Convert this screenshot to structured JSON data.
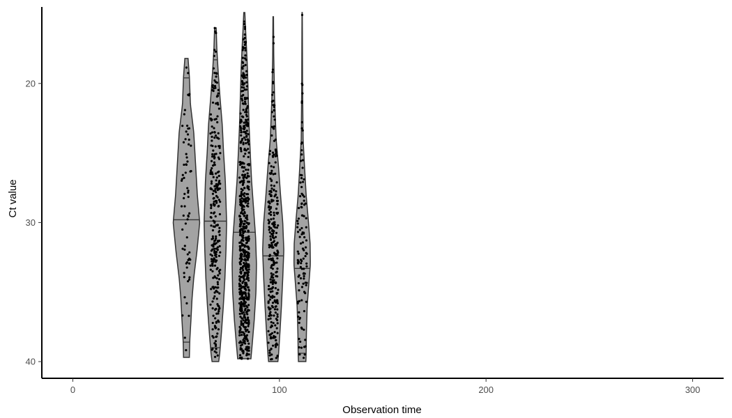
{
  "chart_data": {
    "type": "violin",
    "title": "",
    "xlabel": "Observation time",
    "ylabel": "Ct value",
    "xlim": [
      -15,
      315
    ],
    "ylim": [
      14.5,
      41.2
    ],
    "y_reversed": true,
    "x_ticks": [
      0,
      100,
      200,
      300
    ],
    "x_tick_labels": [
      "0",
      "100",
      "200",
      "300"
    ],
    "y_ticks": [
      20,
      30,
      40
    ],
    "y_tick_labels": [
      "20",
      "30",
      "40"
    ],
    "grid": false,
    "legend": "none",
    "colors": {
      "violin_fill": "#a3a3a3",
      "violin_stroke": "#333333",
      "points": "#000000",
      "axis": "#000000"
    },
    "series": [
      {
        "x": 55,
        "ymin": 18.2,
        "ymax": 39.7,
        "quantiles": [
          19.6,
          29.8,
          38.6
        ],
        "point_count": 70,
        "density": [
          [
            18.2,
            0.12
          ],
          [
            19.5,
            0.22
          ],
          [
            21.5,
            0.3
          ],
          [
            23.5,
            0.55
          ],
          [
            26,
            0.7
          ],
          [
            28,
            0.82
          ],
          [
            30,
            1.0
          ],
          [
            32,
            0.8
          ],
          [
            34,
            0.55
          ],
          [
            35.5,
            0.42
          ],
          [
            37,
            0.34
          ],
          [
            38.5,
            0.25
          ],
          [
            39.7,
            0.22
          ]
        ]
      },
      {
        "x": 69,
        "ymin": 16.0,
        "ymax": 40.0,
        "quantiles": [
          18.3,
          29.9,
          39.0
        ],
        "point_count": 280,
        "density": [
          [
            16.0,
            0.06
          ],
          [
            17.5,
            0.11
          ],
          [
            19,
            0.2
          ],
          [
            21,
            0.35
          ],
          [
            23,
            0.52
          ],
          [
            25,
            0.62
          ],
          [
            27,
            0.75
          ],
          [
            30,
            0.85
          ],
          [
            32,
            0.8
          ],
          [
            34,
            0.72
          ],
          [
            36,
            0.6
          ],
          [
            38,
            0.45
          ],
          [
            39.5,
            0.32
          ],
          [
            40,
            0.25
          ]
        ]
      },
      {
        "x": 83,
        "ymin": 14.9,
        "ymax": 39.8,
        "quantiles": [
          30.7
        ],
        "point_count": 650,
        "density": [
          [
            14.9,
            0.04
          ],
          [
            16,
            0.09
          ],
          [
            17.5,
            0.17
          ],
          [
            19,
            0.24
          ],
          [
            21,
            0.3
          ],
          [
            23,
            0.36
          ],
          [
            25,
            0.45
          ],
          [
            27,
            0.55
          ],
          [
            29,
            0.7
          ],
          [
            31,
            0.85
          ],
          [
            33,
            0.92
          ],
          [
            35,
            0.88
          ],
          [
            37,
            0.75
          ],
          [
            38.5,
            0.62
          ],
          [
            39.8,
            0.5
          ]
        ]
      },
      {
        "x": 97,
        "ymin": 15.2,
        "ymax": 40.0,
        "quantiles": [
          32.4
        ],
        "point_count": 300,
        "density": [
          [
            15.2,
            0.02
          ],
          [
            18,
            0.04
          ],
          [
            21,
            0.1
          ],
          [
            24,
            0.22
          ],
          [
            26,
            0.4
          ],
          [
            28,
            0.55
          ],
          [
            30,
            0.72
          ],
          [
            32,
            0.8
          ],
          [
            34,
            0.72
          ],
          [
            36,
            0.62
          ],
          [
            38,
            0.5
          ],
          [
            39.5,
            0.4
          ],
          [
            40,
            0.35
          ]
        ]
      },
      {
        "x": 111,
        "ymin": 14.9,
        "ymax": 40.0,
        "quantiles": [
          33.3,
          39.4
        ],
        "point_count": 120,
        "density": [
          [
            14.9,
            0.01
          ],
          [
            17,
            0.02
          ],
          [
            20,
            0.03
          ],
          [
            24,
            0.07
          ],
          [
            26,
            0.18
          ],
          [
            28,
            0.3
          ],
          [
            30,
            0.48
          ],
          [
            31.5,
            0.6
          ],
          [
            33,
            0.62
          ],
          [
            34.5,
            0.5
          ],
          [
            36,
            0.38
          ],
          [
            38,
            0.32
          ],
          [
            39.5,
            0.3
          ],
          [
            40,
            0.28
          ]
        ]
      }
    ]
  }
}
